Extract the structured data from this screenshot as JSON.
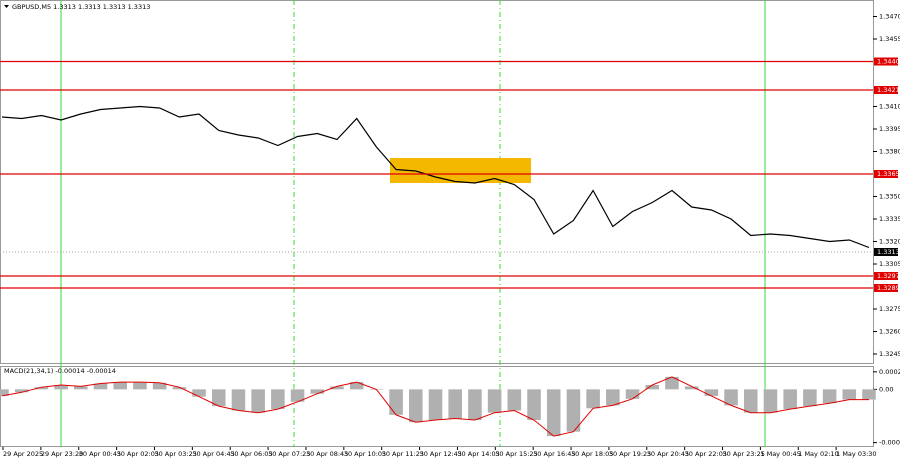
{
  "chart_data": [
    {
      "type": "line",
      "title": "GBPUSD,M5 1.3313 1.3313 1.3313 1.3313",
      "color": "#000000",
      "values": [
        1.3403,
        1.3402,
        1.3404,
        1.3401,
        1.3405,
        1.3408,
        1.3409,
        1.341,
        1.3409,
        1.3403,
        1.3405,
        1.3394,
        1.3391,
        1.3389,
        1.3384,
        1.339,
        1.3392,
        1.3388,
        1.3402,
        1.3383,
        1.3368,
        1.3367,
        1.3363,
        1.336,
        1.3359,
        1.3362,
        1.3358,
        1.3348,
        1.3325,
        1.3334,
        1.3354,
        1.333,
        1.334,
        1.3346,
        1.3354,
        1.3343,
        1.3341,
        1.3335,
        1.3324,
        1.3325,
        1.3324,
        1.3322,
        1.332,
        1.3321,
        1.3316
      ],
      "ylim": [
        1.3239,
        1.3481
      ],
      "yticks": [
        {
          "value": 1.347,
          "label": "1.3470"
        },
        {
          "value": 1.3455,
          "label": "1.3455"
        },
        {
          "value": 1.341,
          "label": "1.3410"
        },
        {
          "value": 1.3395,
          "label": "1.3395"
        },
        {
          "value": 1.338,
          "label": "1.3380"
        },
        {
          "value": 1.335,
          "label": "1.3350"
        },
        {
          "value": 1.3335,
          "label": "1.3335"
        },
        {
          "value": 1.332,
          "label": "1.3320"
        },
        {
          "value": 1.3305,
          "label": "1.3305"
        },
        {
          "value": 1.3275,
          "label": "1.3275"
        },
        {
          "value": 1.326,
          "label": "1.3260"
        },
        {
          "value": 1.3245,
          "label": "1.3245"
        }
      ],
      "levels": [
        {
          "value": 1.344,
          "label": "1.3440"
        },
        {
          "value": 1.3421,
          "label": "1.3421"
        },
        {
          "value": 1.3365,
          "label": "1.3365"
        },
        {
          "value": 1.3297,
          "label": "1.3297"
        },
        {
          "value": 1.3289,
          "label": "1.3289"
        }
      ],
      "level_color": "#e00000",
      "current": {
        "value": 1.3313,
        "label": "1.3313"
      },
      "x_labels": [
        "29 Apr 2025",
        "29 Apr 23:20",
        "30 Apr 00:45",
        "30 Apr 02:05",
        "30 Apr 03:25",
        "30 Apr 04:45",
        "30 Apr 06:05",
        "30 Apr 07:25",
        "30 Apr 08:45",
        "30 Apr 10:05",
        "30 Apr 11:25",
        "30 Apr 12:45",
        "30 Apr 14:05",
        "30 Apr 15:25",
        "30 Apr 16:45",
        "30 Apr 18:05",
        "30 Apr 19:25",
        "30 Apr 20:45",
        "30 Apr 22:05",
        "30 Apr 23:25",
        "1 May 00:45",
        "1 May 02:10",
        "1 May 03:30"
      ]
    },
    {
      "type": "bar",
      "title": "MACD(21,34,1) -0.00014 -0.00014",
      "color": "#b0b0b0",
      "line_color": "#e00000",
      "values": [
        -9e-05,
        -4e-05,
        3e-05,
        6e-05,
        4e-05,
        8e-05,
        0.0001,
        0.0001,
        9e-05,
        3e-05,
        -0.0001,
        -0.00023,
        -0.00029,
        -0.00032,
        -0.00027,
        -0.00017,
        -6e-05,
        4e-05,
        0.0001,
        0,
        -0.00035,
        -0.00045,
        -0.00042,
        -0.0004,
        -0.00042,
        -0.00032,
        -0.00029,
        -0.00042,
        -0.00064,
        -0.00058,
        -0.00026,
        -0.00022,
        -0.00013,
        6e-05,
        0.00017,
        4e-05,
        -9e-05,
        -0.00022,
        -0.00032,
        -0.00032,
        -0.00027,
        -0.00023,
        -0.00019,
        -0.00014,
        -0.00014
      ],
      "ylim": [
        -0.00079,
        0.00032
      ],
      "yticks": [
        0.00024,
        {
          "value": 0,
          "label": "0.00"
        },
        -0.00073
      ]
    }
  ]
}
